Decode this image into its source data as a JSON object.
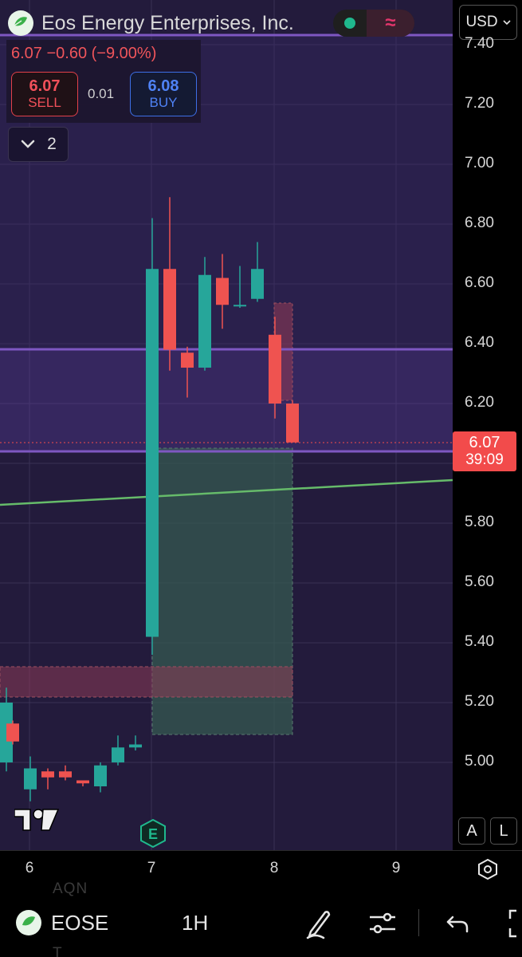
{
  "header": {
    "company_name": "Eos Energy Enterprises, Inc.",
    "logo_text": "eos",
    "currency": "USD",
    "status_wave": "≈"
  },
  "quote": {
    "price_change_text": "6.07  −0.60 (−9.00%)",
    "sell_price": "6.07",
    "sell_label": "SELL",
    "spread": "0.01",
    "buy_price": "6.08",
    "buy_label": "BUY",
    "indicator_count": "2"
  },
  "last_price": {
    "value": "6.07",
    "countdown": "39:09"
  },
  "price_axis": {
    "ticks": [
      "7.40",
      "7.20",
      "7.00",
      "6.80",
      "6.60",
      "6.40",
      "6.20",
      "5.80",
      "5.60",
      "5.40",
      "5.20",
      "5.00"
    ]
  },
  "time_axis": {
    "ticks": [
      "6",
      "7",
      "8",
      "9"
    ]
  },
  "chart_controls": {
    "auto_label": "A",
    "log_label": "L",
    "earnings_label": "E"
  },
  "bottom_bar": {
    "ticker": "EOSE",
    "interval": "1H",
    "ghost_text_1": "AQN",
    "ghost_text_2": "T"
  },
  "colors": {
    "background": "#231b3c",
    "up": "#26a69a",
    "down": "#ef5350",
    "zone_line": "#7e57c2",
    "trend_line": "#66bb6a",
    "sell": "#f2505a",
    "buy": "#4f82f5"
  },
  "chart_data": {
    "type": "candlestick",
    "symbol": "EOSE",
    "interval": "1H",
    "ylim": [
      4.86,
      7.44
    ],
    "x_ticks": [
      "6",
      "7",
      "8",
      "9"
    ],
    "candles": [
      {
        "o": 5.0,
        "h": 5.25,
        "l": 4.97,
        "c": 5.2,
        "dir": "up"
      },
      {
        "o": 5.13,
        "h": 5.14,
        "l": 5.06,
        "c": 5.07,
        "dir": "down"
      },
      {
        "o": 4.91,
        "h": 5.02,
        "l": 4.87,
        "c": 4.98,
        "dir": "up"
      },
      {
        "o": 4.97,
        "h": 4.98,
        "l": 4.91,
        "c": 4.95,
        "dir": "down"
      },
      {
        "o": 4.97,
        "h": 4.99,
        "l": 4.94,
        "c": 4.95,
        "dir": "down"
      },
      {
        "o": 4.94,
        "h": 4.94,
        "l": 4.92,
        "c": 4.93,
        "dir": "down"
      },
      {
        "o": 4.92,
        "h": 5.0,
        "l": 4.9,
        "c": 4.99,
        "dir": "up"
      },
      {
        "o": 5.0,
        "h": 5.09,
        "l": 4.99,
        "c": 5.05,
        "dir": "up"
      },
      {
        "o": 5.05,
        "h": 5.09,
        "l": 5.04,
        "c": 5.06,
        "dir": "up"
      },
      {
        "o": 5.42,
        "h": 6.82,
        "l": 5.36,
        "c": 6.65,
        "dir": "up"
      },
      {
        "o": 6.65,
        "h": 6.89,
        "l": 6.31,
        "c": 6.38,
        "dir": "down"
      },
      {
        "o": 6.37,
        "h": 6.39,
        "l": 6.22,
        "c": 6.32,
        "dir": "down"
      },
      {
        "o": 6.32,
        "h": 6.69,
        "l": 6.31,
        "c": 6.63,
        "dir": "up"
      },
      {
        "o": 6.62,
        "h": 6.7,
        "l": 6.45,
        "c": 6.53,
        "dir": "down"
      },
      {
        "o": 6.53,
        "h": 6.66,
        "l": 6.52,
        "c": 6.53,
        "dir": "up"
      },
      {
        "o": 6.55,
        "h": 6.74,
        "l": 6.54,
        "c": 6.65,
        "dir": "up"
      },
      {
        "o": 6.43,
        "h": 6.49,
        "l": 6.15,
        "c": 6.2,
        "dir": "down"
      },
      {
        "o": 6.2,
        "h": 6.21,
        "l": 6.07,
        "c": 6.07,
        "dir": "down"
      }
    ],
    "horizontal_lines": [
      7.44,
      6.38,
      6.04
    ],
    "zones": [
      {
        "kind": "demand",
        "top": 6.04,
        "bottom": 5.09
      },
      {
        "kind": "supply",
        "top": 5.32,
        "bottom": 5.22
      },
      {
        "kind": "pending",
        "top": 6.54,
        "bottom": 6.21
      }
    ],
    "current_price": 6.07,
    "grid": true
  }
}
